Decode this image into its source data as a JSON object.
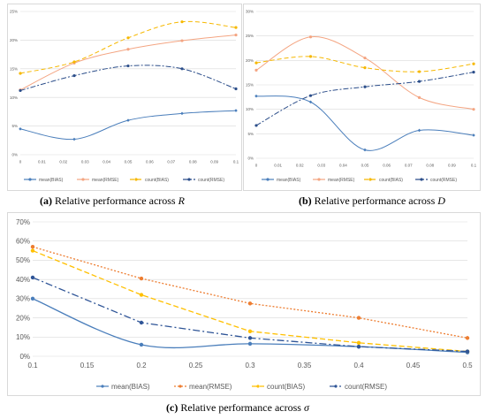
{
  "captions": {
    "a": {
      "tag": "(a)",
      "text": "Relative performance across",
      "symbol": "R"
    },
    "b": {
      "tag": "(b)",
      "text": "Relative performance across",
      "symbol": "D"
    },
    "c": {
      "tag": "(c)",
      "text": "Relative performance across",
      "symbol": "σ"
    }
  },
  "chart_data": [
    {
      "type": "line",
      "id": "a",
      "x": [
        0,
        0.025,
        0.05,
        0.075,
        0.1
      ],
      "xticks": [
        0,
        0.01,
        0.02,
        0.03,
        0.04,
        0.05,
        0.06,
        0.07,
        0.08,
        0.09,
        0.1
      ],
      "xlim": [
        0,
        0.1
      ],
      "ylim": [
        0,
        25
      ],
      "yticks": [
        0,
        5,
        10,
        15,
        20,
        25
      ],
      "ytick_suffix": "%",
      "grid": true,
      "legend": "bottom",
      "series": [
        {
          "name": "mean(BIAS)",
          "values": [
            4.5,
            2.7,
            6.0,
            7.2,
            7.7
          ],
          "color": "#4a7ebb",
          "dash": "",
          "marker": "diamond",
          "smooth": true
        },
        {
          "name": "mean(RMSE)",
          "values": [
            11.3,
            16.0,
            18.4,
            19.9,
            20.9
          ],
          "color": "#f4a582",
          "dash": "",
          "marker": "circle",
          "smooth": true
        },
        {
          "name": "count(BIAS)",
          "values": [
            14.2,
            16.2,
            20.4,
            23.2,
            22.2
          ],
          "color": "#f6b800",
          "dash": "5,3",
          "marker": "circle",
          "smooth": true
        },
        {
          "name": "count(RMSE)",
          "values": [
            11.2,
            13.8,
            15.5,
            15.0,
            11.5
          ],
          "color": "#2c4e8a",
          "dash": "6,2,2,2",
          "marker": "circle",
          "smooth": true
        }
      ]
    },
    {
      "type": "line",
      "id": "b",
      "x": [
        0,
        0.025,
        0.05,
        0.075,
        0.1
      ],
      "xticks": [
        0,
        0.01,
        0.02,
        0.03,
        0.04,
        0.05,
        0.06,
        0.07,
        0.08,
        0.09,
        0.1
      ],
      "xlim": [
        0,
        0.1
      ],
      "ylim": [
        0,
        30
      ],
      "yticks": [
        0,
        5,
        10,
        15,
        20,
        25,
        30
      ],
      "ytick_suffix": "%",
      "grid": true,
      "legend": "bottom",
      "series": [
        {
          "name": "mean(BIAS)",
          "values": [
            12.7,
            11.5,
            1.7,
            5.7,
            4.7
          ],
          "color": "#4a7ebb",
          "dash": "",
          "marker": "diamond",
          "smooth": true
        },
        {
          "name": "mean(RMSE)",
          "values": [
            18.0,
            24.8,
            20.5,
            12.4,
            10.0
          ],
          "color": "#f4a582",
          "dash": "",
          "marker": "circle",
          "smooth": true
        },
        {
          "name": "count(BIAS)",
          "values": [
            19.5,
            20.8,
            18.5,
            17.7,
            19.3
          ],
          "color": "#f6b800",
          "dash": "5,3",
          "marker": "circle",
          "smooth": true
        },
        {
          "name": "count(RMSE)",
          "values": [
            6.7,
            12.8,
            14.6,
            15.7,
            17.6
          ],
          "color": "#2c4e8a",
          "dash": "6,2,2,2",
          "marker": "circle",
          "smooth": true
        }
      ]
    },
    {
      "type": "line",
      "id": "c",
      "x": [
        0.1,
        0.2,
        0.3,
        0.4,
        0.5
      ],
      "xticks": [
        0.1,
        0.15,
        0.2,
        0.25,
        0.3,
        0.35,
        0.4,
        0.45,
        0.5
      ],
      "xlim": [
        0.1,
        0.5
      ],
      "ylim": [
        0,
        70
      ],
      "yticks": [
        0,
        10,
        20,
        30,
        40,
        50,
        60,
        70
      ],
      "ytick_suffix": "%",
      "grid": true,
      "legend": "bottom",
      "series": [
        {
          "name": "mean(BIAS)",
          "values": [
            30.0,
            6.0,
            6.5,
            5.0,
            2.0
          ],
          "color": "#4a7ebb",
          "dash": "",
          "marker": "circle",
          "smooth": true
        },
        {
          "name": "mean(RMSE)",
          "values": [
            57.0,
            40.5,
            27.5,
            20.0,
            9.5
          ],
          "color": "#ed7d31",
          "dash": "2,2",
          "marker": "circle",
          "smooth": false
        },
        {
          "name": "count(BIAS)",
          "values": [
            55.0,
            32.0,
            13.0,
            7.0,
            2.5
          ],
          "color": "#ffc000",
          "dash": "6,3",
          "marker": "circle",
          "smooth": false
        },
        {
          "name": "count(RMSE)",
          "values": [
            41.0,
            17.5,
            9.5,
            5.0,
            2.5
          ],
          "color": "#2f5597",
          "dash": "8,3,2,3",
          "marker": "circle",
          "smooth": false
        }
      ]
    }
  ]
}
